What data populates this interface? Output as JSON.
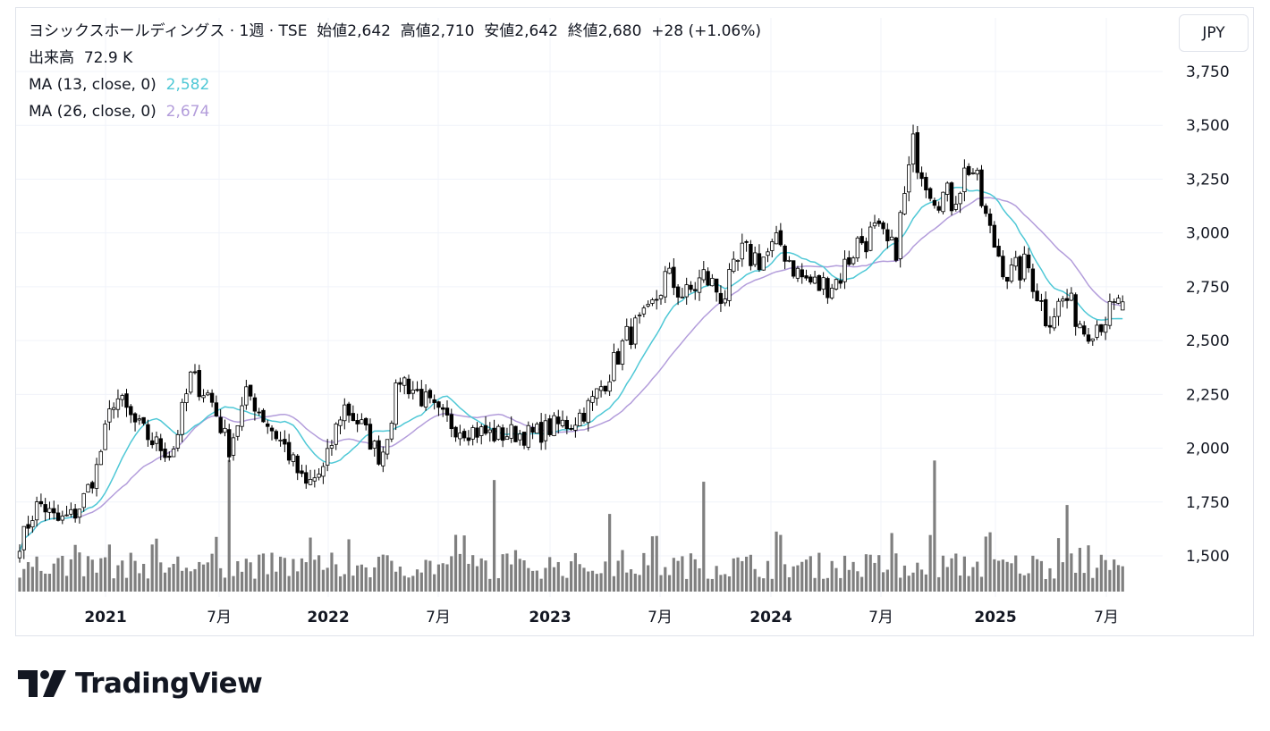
{
  "currency_button": "JPY",
  "legend": {
    "title": "ヨシックスホールディングス · 1週 · TSE",
    "open_label": "始値",
    "open": "2,642",
    "high_label": "高値",
    "high": "2,710",
    "low_label": "安値",
    "low": "2,642",
    "close_label": "終値",
    "close": "2,680",
    "change": "+28 (+1.06%)",
    "volume_label": "出来高",
    "volume": "72.9 K",
    "ma13_label": "MA (13, close, 0)",
    "ma13_value": "2,582",
    "ma26_label": "MA (26, close, 0)",
    "ma26_value": "2,674"
  },
  "brand": {
    "name": "TradingView"
  },
  "colors": {
    "up": "#ffffff",
    "down": "#000000",
    "wick": "#000000",
    "volume": "#7f7f7f",
    "ma13": "#4fc8d6",
    "ma26": "#b39ddb",
    "grid": "#f0f3fa"
  },
  "chart_data": {
    "type": "candlestick",
    "interval": "1 week",
    "ylim": [
      1350,
      3800
    ],
    "y_ticks": [
      "3,750",
      "3,500",
      "3,250",
      "3,000",
      "2,750",
      "2,500",
      "2,250",
      "2,000",
      "1,750",
      "1,500"
    ],
    "x_ticks": [
      "2021",
      "7月",
      "2022",
      "7月",
      "2023",
      "7月",
      "2024",
      "7月",
      "2025",
      "7月"
    ],
    "close_anchors": [
      [
        "2020-10",
        1560
      ],
      [
        "2020-11",
        1750
      ],
      [
        "2020-12",
        1660
      ],
      [
        "2021-01",
        1700
      ],
      [
        "2021-02",
        1890
      ],
      [
        "2021-03",
        2250
      ],
      [
        "2021-04",
        2120
      ],
      [
        "2021-05",
        2030
      ],
      [
        "2021-06",
        1970
      ],
      [
        "2021-07",
        2330
      ],
      [
        "2021-08",
        2240
      ],
      [
        "2021-09",
        2000
      ],
      [
        "2021-10",
        2260
      ],
      [
        "2021-11",
        2120
      ],
      [
        "2021-12",
        2000
      ],
      [
        "2022-01",
        1820
      ],
      [
        "2022-02",
        1900
      ],
      [
        "2022-03",
        2200
      ],
      [
        "2022-04",
        2100
      ],
      [
        "2022-05",
        1950
      ],
      [
        "2022-06",
        2330
      ],
      [
        "2022-07",
        2250
      ],
      [
        "2022-08",
        2150
      ],
      [
        "2022-09",
        2100
      ],
      [
        "2022-10",
        2080
      ],
      [
        "2022-11",
        2060
      ],
      [
        "2022-12",
        2070
      ],
      [
        "2023-01",
        2060
      ],
      [
        "2023-02",
        2100
      ],
      [
        "2023-03",
        2120
      ],
      [
        "2023-04",
        2200
      ],
      [
        "2023-05",
        2350
      ],
      [
        "2023-06",
        2530
      ],
      [
        "2023-07",
        2600
      ],
      [
        "2023-08",
        2800
      ],
      [
        "2023-09",
        2700
      ],
      [
        "2023-10",
        2800
      ],
      [
        "2023-11",
        2700
      ],
      [
        "2023-12",
        2900
      ],
      [
        "2024-01",
        2880
      ],
      [
        "2024-02",
        2950
      ],
      [
        "2024-03",
        2800
      ],
      [
        "2024-04",
        2750
      ],
      [
        "2024-05",
        2780
      ],
      [
        "2024-06",
        2950
      ],
      [
        "2024-07",
        3000
      ],
      [
        "2024-08",
        2900
      ],
      [
        "2024-09",
        3400
      ],
      [
        "2024-10",
        3200
      ],
      [
        "2024-11",
        3150
      ],
      [
        "2024-12",
        3330
      ],
      [
        "2025-01",
        3000
      ],
      [
        "2025-02",
        2800
      ],
      [
        "2025-03",
        2850
      ],
      [
        "2025-04",
        2600
      ],
      [
        "2025-05",
        2700
      ],
      [
        "2025-06",
        2550
      ],
      [
        "2025-07",
        2600
      ],
      [
        "2025-08",
        2680
      ]
    ],
    "volume_peaks": [
      "2021-09",
      "2022-11",
      "2023-05",
      "2023-10",
      "2024-10",
      "2025-05"
    ]
  }
}
